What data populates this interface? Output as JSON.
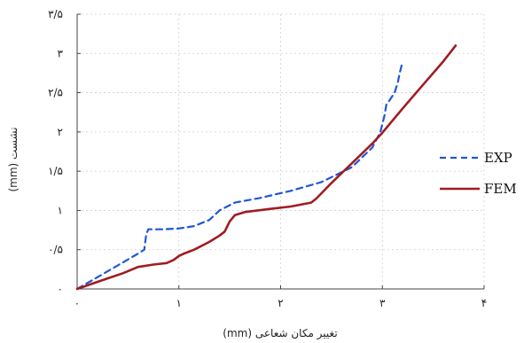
{
  "chart_data": {
    "type": "line",
    "title": "",
    "xlabel": "تغییر مکان شعاعی (mm)",
    "ylabel": "نشست (mm)",
    "xlim": [
      0,
      4
    ],
    "ylim": [
      0,
      3.5
    ],
    "grid": true,
    "legend_position": "right",
    "x_ticks": [
      {
        "value": 0,
        "label": "۰"
      },
      {
        "value": 1,
        "label": "۱"
      },
      {
        "value": 2,
        "label": "۲"
      },
      {
        "value": 3,
        "label": "۳"
      },
      {
        "value": 4,
        "label": "۴"
      }
    ],
    "y_ticks": [
      {
        "value": 0,
        "label": "۰"
      },
      {
        "value": 0.5,
        "label": "۰/۵"
      },
      {
        "value": 1,
        "label": "۱"
      },
      {
        "value": 1.5,
        "label": "۱/۵"
      },
      {
        "value": 2,
        "label": "۲"
      },
      {
        "value": 2.5,
        "label": "۲/۵"
      },
      {
        "value": 3,
        "label": "۳"
      },
      {
        "value": 3.5,
        "label": "۳/۵"
      }
    ],
    "series": [
      {
        "name": "EXP",
        "color": "#1f57d6",
        "dash": "dashed",
        "points": [
          [
            0,
            0
          ],
          [
            0.2,
            0.15
          ],
          [
            0.4,
            0.3
          ],
          [
            0.6,
            0.45
          ],
          [
            0.66,
            0.5
          ],
          [
            0.68,
            0.7
          ],
          [
            0.7,
            0.76
          ],
          [
            0.85,
            0.76
          ],
          [
            1.0,
            0.77
          ],
          [
            1.15,
            0.8
          ],
          [
            1.3,
            0.88
          ],
          [
            1.4,
            1.0
          ],
          [
            1.55,
            1.1
          ],
          [
            1.8,
            1.16
          ],
          [
            2.1,
            1.25
          ],
          [
            2.4,
            1.36
          ],
          [
            2.7,
            1.55
          ],
          [
            2.9,
            1.8
          ],
          [
            2.98,
            2.0
          ],
          [
            3.02,
            2.2
          ],
          [
            3.04,
            2.35
          ],
          [
            3.08,
            2.42
          ],
          [
            3.12,
            2.5
          ],
          [
            3.15,
            2.62
          ],
          [
            3.17,
            2.75
          ],
          [
            3.2,
            2.9
          ]
        ]
      },
      {
        "name": "FEM",
        "color": "#a01c22",
        "dash": "solid",
        "points": [
          [
            0,
            0
          ],
          [
            0.2,
            0.09
          ],
          [
            0.45,
            0.2
          ],
          [
            0.6,
            0.28
          ],
          [
            0.75,
            0.31
          ],
          [
            0.88,
            0.33
          ],
          [
            0.95,
            0.37
          ],
          [
            1.0,
            0.42
          ],
          [
            1.05,
            0.45
          ],
          [
            1.15,
            0.5
          ],
          [
            1.3,
            0.6
          ],
          [
            1.4,
            0.68
          ],
          [
            1.45,
            0.73
          ],
          [
            1.5,
            0.86
          ],
          [
            1.55,
            0.94
          ],
          [
            1.65,
            0.98
          ],
          [
            1.9,
            1.02
          ],
          [
            2.1,
            1.05
          ],
          [
            2.3,
            1.1
          ],
          [
            2.35,
            1.15
          ],
          [
            2.5,
            1.35
          ],
          [
            2.7,
            1.6
          ],
          [
            2.9,
            1.85
          ],
          [
            3.0,
            1.99
          ],
          [
            3.2,
            2.3
          ],
          [
            3.4,
            2.6
          ],
          [
            3.6,
            2.9
          ],
          [
            3.72,
            3.1
          ]
        ]
      }
    ]
  }
}
